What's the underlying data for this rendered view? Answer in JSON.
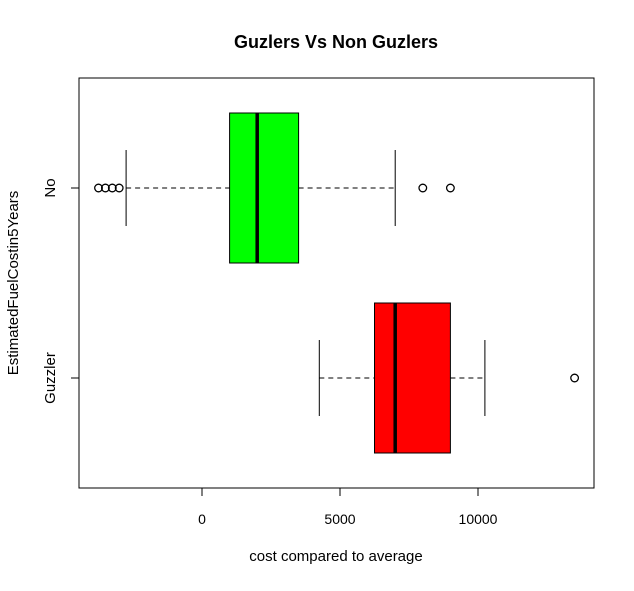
{
  "chart_data": {
    "type": "boxplot",
    "orientation": "horizontal",
    "title": "Guzlers Vs Non Guzlers",
    "xlabel": "cost compared to average",
    "ylabel": "EstimatedFuelCostin5Years",
    "xlim": [
      -4500,
      14000
    ],
    "x_ticks": [
      0,
      5000,
      10000
    ],
    "x_tick_labels": [
      "0",
      "5000",
      "10000"
    ],
    "grid": false,
    "legend": "none",
    "groups": [
      {
        "name": "No",
        "color": "#00ff00",
        "whisker_low": -2750,
        "q1": 1000,
        "median": 2000,
        "q3": 3500,
        "whisker_high": 7000,
        "outliers": [
          -3750,
          -3500,
          -3250,
          -3000,
          8000,
          9000
        ]
      },
      {
        "name": "Guzzler",
        "color": "#ff0000",
        "whisker_low": 4250,
        "q1": 6250,
        "median": 7000,
        "q3": 9000,
        "whisker_high": 10250,
        "outliers": [
          13500
        ]
      }
    ]
  }
}
